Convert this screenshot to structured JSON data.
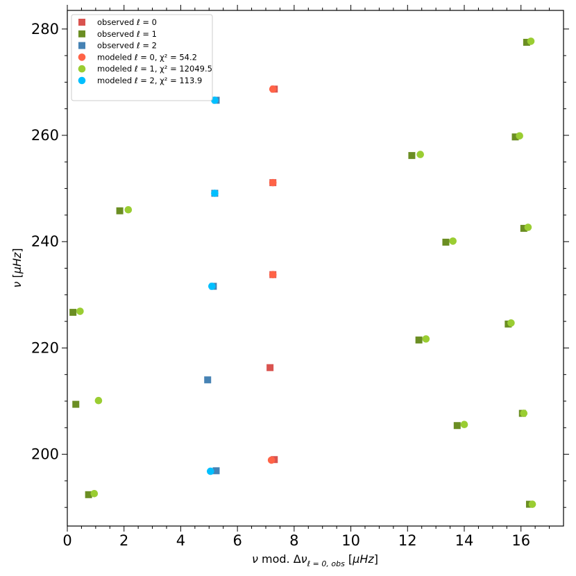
{
  "chart_data": {
    "type": "scatter",
    "xlabel": "ν mod. Δν_{ℓ=0,obs} [μHz]",
    "ylabel": "ν [μHz]",
    "xlim": [
      0,
      17.5
    ],
    "ylim": [
      186.5,
      283.5
    ],
    "xticks": [
      0,
      2,
      4,
      6,
      8,
      10,
      12,
      14,
      16
    ],
    "yticks": [
      200,
      220,
      240,
      260,
      280
    ],
    "grid": false,
    "legend_position": "top-left",
    "series": [
      {
        "name": "observed ℓ = 0",
        "marker": "square",
        "color": "#d9534f",
        "points": [
          [
            7.3,
            199.0
          ],
          [
            7.15,
            216.3
          ],
          [
            7.25,
            233.8
          ],
          [
            7.25,
            251.1
          ],
          [
            7.3,
            268.7
          ]
        ]
      },
      {
        "name": "observed ℓ = 1",
        "marker": "square",
        "color": "#6b8e23",
        "points": [
          [
            0.75,
            192.4
          ],
          [
            0.3,
            209.4
          ],
          [
            0.2,
            226.7
          ],
          [
            1.85,
            245.8
          ],
          [
            16.3,
            190.6
          ],
          [
            13.75,
            205.4
          ],
          [
            12.4,
            221.5
          ],
          [
            13.35,
            239.9
          ],
          [
            12.15,
            256.2
          ],
          [
            16.2,
            277.5
          ],
          [
            16.05,
            207.7
          ],
          [
            15.55,
            224.5
          ],
          [
            16.1,
            242.5
          ],
          [
            15.8,
            259.7
          ]
        ]
      },
      {
        "name": "observed ℓ = 2",
        "marker": "square",
        "color": "#4682b4",
        "points": [
          [
            5.25,
            196.9
          ],
          [
            4.95,
            214.0
          ],
          [
            5.15,
            231.6
          ],
          [
            5.2,
            249.1
          ],
          [
            5.25,
            266.6
          ]
        ]
      },
      {
        "name": "modeled ℓ = 0, χ² = 54.2",
        "marker": "circle",
        "color": "#ff6347",
        "points": [
          [
            7.2,
            198.9
          ],
          [
            7.25,
            233.8
          ],
          [
            7.25,
            251.1
          ],
          [
            7.25,
            268.7
          ]
        ]
      },
      {
        "name": "modeled ℓ = 1, χ² = 12049.5",
        "marker": "circle",
        "color": "#9acd32",
        "points": [
          [
            0.95,
            192.6
          ],
          [
            1.1,
            210.1
          ],
          [
            0.45,
            226.9
          ],
          [
            2.15,
            246.0
          ],
          [
            16.4,
            190.6
          ],
          [
            14.0,
            205.6
          ],
          [
            12.65,
            221.7
          ],
          [
            13.6,
            240.1
          ],
          [
            12.45,
            256.4
          ],
          [
            16.35,
            277.7
          ],
          [
            16.1,
            207.7
          ],
          [
            15.65,
            224.7
          ],
          [
            16.25,
            242.7
          ],
          [
            15.95,
            259.9
          ]
        ]
      },
      {
        "name": "modeled ℓ = 2, χ² = 113.9",
        "marker": "circle",
        "color": "#00bfff",
        "points": [
          [
            5.05,
            196.8
          ],
          [
            5.1,
            231.6
          ],
          [
            5.2,
            249.1
          ],
          [
            5.2,
            266.6
          ]
        ]
      }
    ]
  }
}
